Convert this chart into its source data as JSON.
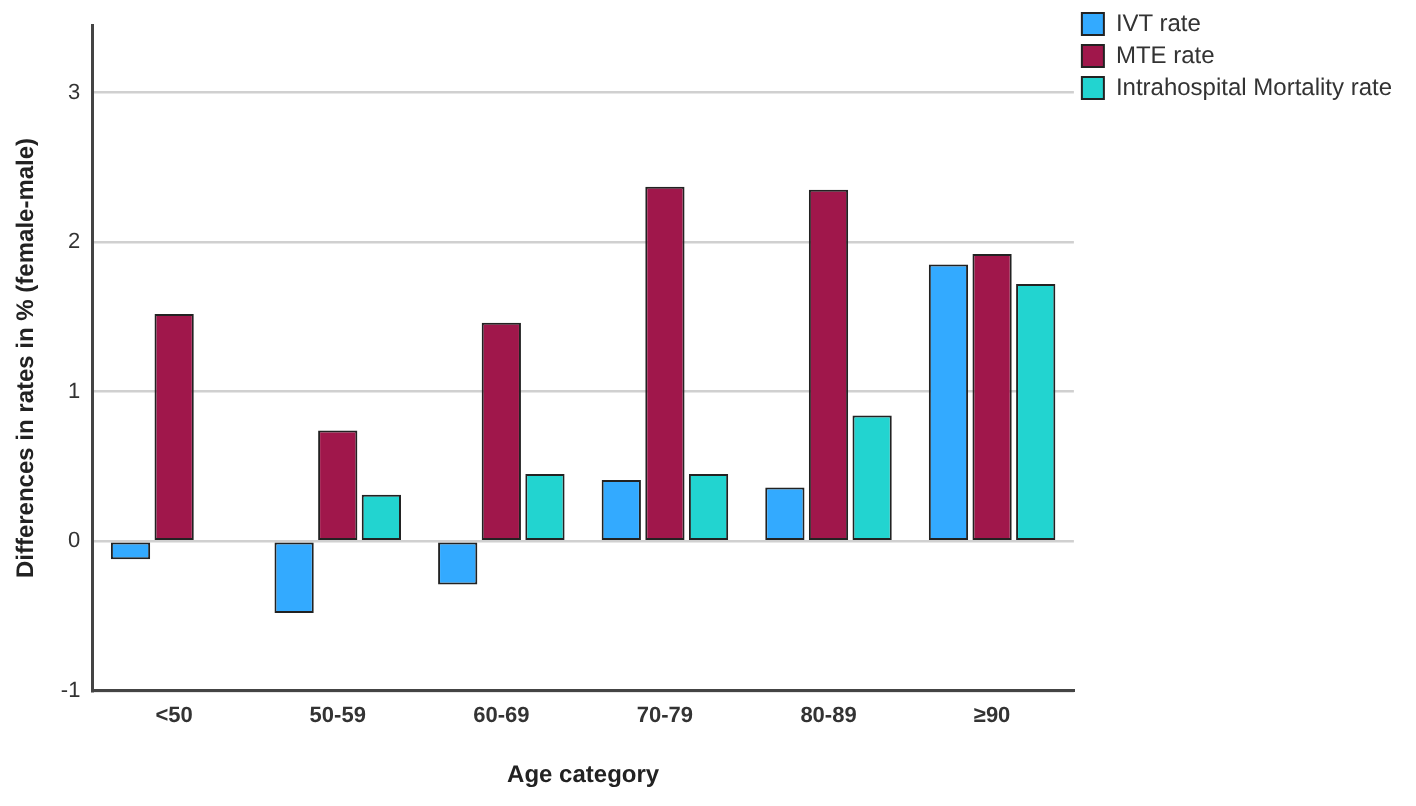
{
  "chart_data": {
    "type": "bar",
    "xlabel": "Age category",
    "ylabel": "Differences in rates in % (female-male)",
    "categories": [
      "<50",
      "50-59",
      "60-69",
      "70-79",
      "80-89",
      "≥90"
    ],
    "series": [
      {
        "name": "IVT rate",
        "color": "#33aaff",
        "values": [
          -0.12,
          -0.48,
          -0.29,
          0.41,
          0.36,
          1.85
        ]
      },
      {
        "name": "MTE rate",
        "color": "#a0174b",
        "values": [
          1.52,
          0.74,
          1.46,
          2.37,
          2.35,
          1.92
        ]
      },
      {
        "name": "Intrahospital Mortality rate",
        "color": "#22d4d0",
        "values": [
          0.0,
          0.31,
          0.45,
          0.45,
          0.84,
          1.72
        ]
      }
    ],
    "ylim": [
      -1,
      3.45
    ],
    "yticks": [
      -1,
      0,
      1,
      2,
      3
    ],
    "grid": "y",
    "legend": "top right"
  }
}
